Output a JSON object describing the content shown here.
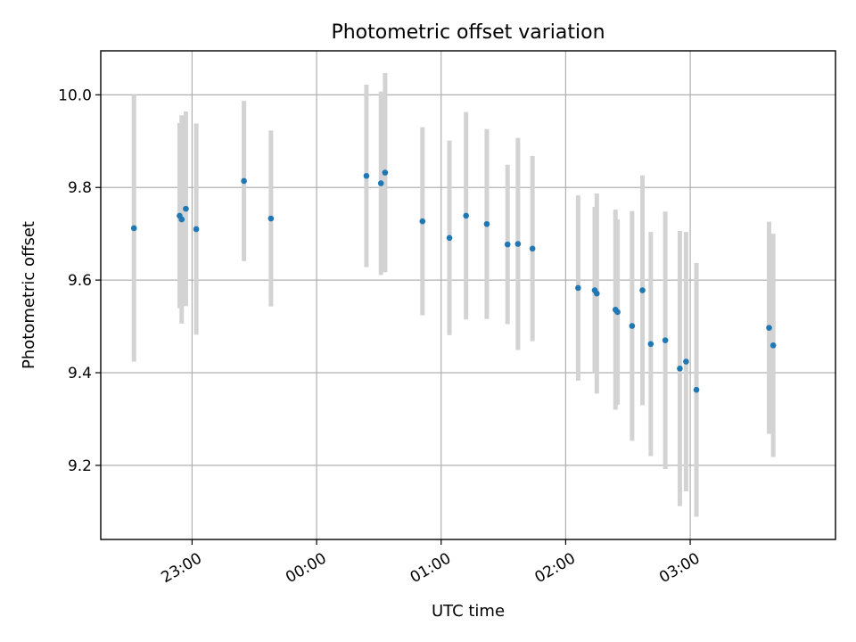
{
  "chart_data": {
    "type": "scatter",
    "title": "Photometric offset variation",
    "xlabel": "UTC time",
    "ylabel": "Photometric offset",
    "x_axis": {
      "kind": "time",
      "range": [
        "22:16",
        "04:10"
      ],
      "ticks": [
        {
          "t": "23:00",
          "label": "23:00"
        },
        {
          "t": "00:00",
          "label": "00:00"
        },
        {
          "t": "01:00",
          "label": "01:00"
        },
        {
          "t": "02:00",
          "label": "02:00"
        },
        {
          "t": "03:00",
          "label": "03:00"
        }
      ]
    },
    "y_axis": {
      "range": [
        9.04,
        10.095
      ],
      "ticks": [
        {
          "v": 9.2,
          "label": "9.2"
        },
        {
          "v": 9.4,
          "label": "9.4"
        },
        {
          "v": 9.6,
          "label": "9.6"
        },
        {
          "v": 9.8,
          "label": "9.8"
        },
        {
          "v": 10.0,
          "label": "10.0"
        }
      ]
    },
    "grid": true,
    "colors": {
      "marker": "#1f77b4",
      "errorbar": "#d3d3d3",
      "grid": "#b0b0b0"
    },
    "series": [
      {
        "points": [
          {
            "t": "22:32",
            "y": 9.712,
            "err": 0.288
          },
          {
            "t": "22:54",
            "y": 9.739,
            "err": 0.2
          },
          {
            "t": "22:55",
            "y": 9.731,
            "err": 0.225
          },
          {
            "t": "22:57",
            "y": 9.754,
            "err": 0.21
          },
          {
            "t": "23:02",
            "y": 9.71,
            "err": 0.228
          },
          {
            "t": "23:25",
            "y": 9.814,
            "err": 0.173
          },
          {
            "t": "23:38",
            "y": 9.733,
            "err": 0.19
          },
          {
            "t": "00:24",
            "y": 9.825,
            "err": 0.197
          },
          {
            "t": "00:31",
            "y": 9.809,
            "err": 0.198
          },
          {
            "t": "00:33",
            "y": 9.832,
            "err": 0.215
          },
          {
            "t": "00:51",
            "y": 9.727,
            "err": 0.203
          },
          {
            "t": "01:04",
            "y": 9.691,
            "err": 0.21
          },
          {
            "t": "01:12",
            "y": 9.739,
            "err": 0.224
          },
          {
            "t": "01:22",
            "y": 9.721,
            "err": 0.205
          },
          {
            "t": "01:32",
            "y": 9.677,
            "err": 0.172
          },
          {
            "t": "01:37",
            "y": 9.678,
            "err": 0.229
          },
          {
            "t": "01:44",
            "y": 9.668,
            "err": 0.2
          },
          {
            "t": "02:06",
            "y": 9.583,
            "err": 0.2
          },
          {
            "t": "02:14",
            "y": 9.578,
            "err": 0.18
          },
          {
            "t": "02:15",
            "y": 9.571,
            "err": 0.216
          },
          {
            "t": "02:24",
            "y": 9.536,
            "err": 0.216
          },
          {
            "t": "02:25",
            "y": 9.531,
            "err": 0.2
          },
          {
            "t": "02:32",
            "y": 9.501,
            "err": 0.248
          },
          {
            "t": "02:37",
            "y": 9.578,
            "err": 0.248
          },
          {
            "t": "02:41",
            "y": 9.462,
            "err": 0.242
          },
          {
            "t": "02:48",
            "y": 9.47,
            "err": 0.278
          },
          {
            "t": "02:55",
            "y": 9.409,
            "err": 0.297
          },
          {
            "t": "02:58",
            "y": 9.424,
            "err": 0.28
          },
          {
            "t": "03:03",
            "y": 9.363,
            "err": 0.274
          },
          {
            "t": "03:38",
            "y": 9.497,
            "err": 0.229
          },
          {
            "t": "03:40",
            "y": 9.459,
            "err": 0.241
          }
        ]
      }
    ]
  }
}
